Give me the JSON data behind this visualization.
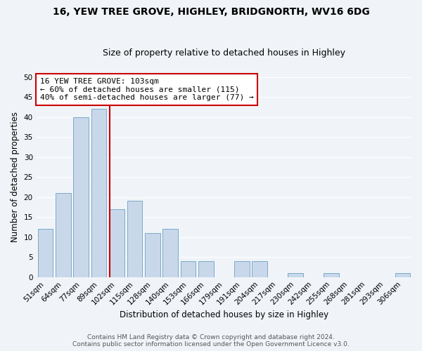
{
  "title": "16, YEW TREE GROVE, HIGHLEY, BRIDGNORTH, WV16 6DG",
  "subtitle": "Size of property relative to detached houses in Highley",
  "xlabel": "Distribution of detached houses by size in Highley",
  "ylabel": "Number of detached properties",
  "bar_labels": [
    "51sqm",
    "64sqm",
    "77sqm",
    "89sqm",
    "102sqm",
    "115sqm",
    "128sqm",
    "140sqm",
    "153sqm",
    "166sqm",
    "179sqm",
    "191sqm",
    "204sqm",
    "217sqm",
    "230sqm",
    "242sqm",
    "255sqm",
    "268sqm",
    "281sqm",
    "293sqm",
    "306sqm"
  ],
  "bar_values": [
    12,
    21,
    40,
    42,
    17,
    19,
    11,
    12,
    4,
    4,
    0,
    4,
    4,
    0,
    1,
    0,
    1,
    0,
    0,
    0,
    1
  ],
  "bar_color": "#c8d8ea",
  "bar_edge_color": "#7aaac8",
  "vline_color": "#cc0000",
  "ylim": [
    0,
    50
  ],
  "yticks": [
    0,
    5,
    10,
    15,
    20,
    25,
    30,
    35,
    40,
    45,
    50
  ],
  "annotation_title": "16 YEW TREE GROVE: 103sqm",
  "annotation_line1": "← 60% of detached houses are smaller (115)",
  "annotation_line2": "40% of semi-detached houses are larger (77) →",
  "annotation_box_color": "#ffffff",
  "annotation_box_edge": "#cc0000",
  "footer1": "Contains HM Land Registry data © Crown copyright and database right 2024.",
  "footer2": "Contains public sector information licensed under the Open Government Licence v3.0.",
  "bg_color": "#f0f4f8",
  "plot_bg_color": "#f0f4f8",
  "grid_color": "#ffffff",
  "title_fontsize": 10,
  "subtitle_fontsize": 9,
  "axis_label_fontsize": 8.5,
  "tick_fontsize": 7.5,
  "footer_fontsize": 6.5,
  "annotation_fontsize": 8
}
